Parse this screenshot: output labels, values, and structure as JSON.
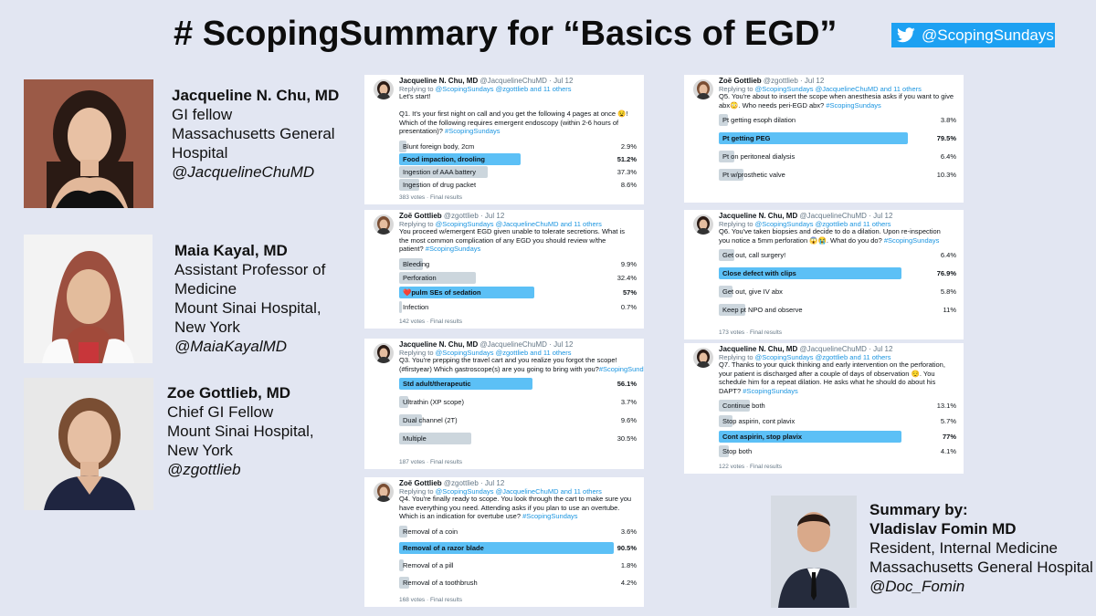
{
  "title": "# ScopingSummary for “Basics of EGD”",
  "twitter_handle": "@ScopingSundays",
  "colors": {
    "twitter_blue": "#1da1f2",
    "poll_winner": "#5cc0f6",
    "poll_bar": "#ccd6dd",
    "background": "#e2e6f2"
  },
  "people": [
    {
      "name": "Jacqueline N. Chu, MD",
      "l1": "GI fellow",
      "l2": "Massachusetts General",
      "l3": "Hospital",
      "handle": "@JacquelineChuMD"
    },
    {
      "name": "Maia Kayal, MD",
      "l1": "Assistant Professor of",
      "l2": "Medicine",
      "l3": "Mount Sinai Hospital,",
      "l4": "New York",
      "handle": "@MaiaKayalMD"
    },
    {
      "name": "Zoe Gottlieb, MD",
      "l1": "Chief GI Fellow",
      "l2": "Mount Sinai Hospital,",
      "l3": "New York",
      "handle": "@zgottlieb"
    }
  ],
  "summary": {
    "label": "Summary by:",
    "name": "Vladislav Fomin MD",
    "l1": "Resident, Internal Medicine",
    "l2": "Massachusetts General Hospital",
    "handle": "@Doc_Fomin"
  },
  "cards": [
    {
      "author": "Jacqueline N. Chu, MD",
      "handle": "@JacquelineChuMD · Jul 12",
      "reply": "Replying to ",
      "reply_to": "@ScopingSundays @zgottlieb and 11 others",
      "text": [
        "Let's start!",
        "",
        "Q1. It's your first night on call and you get the following 4 pages at once 😧!",
        "Which of the following requires emergent endoscopy (within 2-6 hours of",
        "presentation)? "
      ],
      "tag": "#ScopingSundays",
      "options": [
        {
          "label": "Blunt foreign body, 2cm",
          "pct": "2.9%",
          "v": 2.9
        },
        {
          "label": "Food impaction, drooling",
          "pct": "51.2%",
          "v": 51.2,
          "win": true
        },
        {
          "label": "Ingestion of AAA battery",
          "pct": "37.3%",
          "v": 37.3
        },
        {
          "label": "Ingestion of drug packet",
          "pct": "8.6%",
          "v": 8.6
        }
      ],
      "footer": "383 votes · Final results"
    },
    {
      "author": "Zoë Gottlieb",
      "handle": "@zgottlieb · Jul 12",
      "reply": "Replying to ",
      "reply_to": "@ScopingSundays @JacquelineChuMD and 11 others",
      "text": [
        "You proceed w/emergent EGD given unable to tolerate secretions. What is",
        "the most common complication of any EGD you should review w/the",
        "patient? "
      ],
      "tag": "#ScopingSundays",
      "options": [
        {
          "label": "Bleeding",
          "pct": "9.9%",
          "v": 9.9
        },
        {
          "label": "Perforation",
          "pct": "32.4%",
          "v": 32.4
        },
        {
          "label": "❤️pulm SEs of sedation",
          "pct": "57%",
          "v": 57,
          "win": true
        },
        {
          "label": "Infection",
          "pct": "0.7%",
          "v": 0.7
        }
      ],
      "footer": "142 votes · Final results"
    },
    {
      "author": "Jacqueline N. Chu, MD",
      "handle": "@JacquelineChuMD · Jul 12",
      "reply": "Replying to ",
      "reply_to": "@ScopingSundays @zgottlieb and 11 others",
      "text": [
        "Q3. You're prepping the travel cart and you realize you forgot the scope!",
        "(#firstyear) Which gastroscope(s) are you going to bring with you?"
      ],
      "tag": "#ScopingSundays",
      "options": [
        {
          "label": "Std adult/therapeutic",
          "pct": "56.1%",
          "v": 56.1,
          "win": true
        },
        {
          "label": "Ultrathin (XP scope)",
          "pct": "3.7%",
          "v": 3.7
        },
        {
          "label": "Dual channel (2T)",
          "pct": "9.6%",
          "v": 9.6
        },
        {
          "label": "Multiple",
          "pct": "30.5%",
          "v": 30.5
        }
      ],
      "footer": "187 votes · Final results"
    },
    {
      "author": "Zoë Gottlieb",
      "handle": "@zgottlieb · Jul 12",
      "reply": "Replying to ",
      "reply_to": "@ScopingSundays @JacquelineChuMD and 11 others",
      "text": [
        "Q4. You're finally ready to scope. You look through the cart to make sure you",
        "have everything you need. Attending asks if you plan to use an overtube.",
        "Which is an indication for overtube use? "
      ],
      "tag": "#ScopingSundays",
      "options": [
        {
          "label": "Removal of a coin",
          "pct": "3.6%",
          "v": 3.6
        },
        {
          "label": "Removal of a razor blade",
          "pct": "90.5%",
          "v": 90.5,
          "win": true
        },
        {
          "label": "Removal of a pill",
          "pct": "1.8%",
          "v": 1.8
        },
        {
          "label": "Removal of a toothbrush",
          "pct": "4.2%",
          "v": 4.2
        }
      ],
      "footer": "168 votes · Final results"
    },
    {
      "author": "Zoë Gottlieb",
      "handle": "@zgottlieb · Jul 12",
      "reply": "Replying to ",
      "reply_to": "@ScopingSundays @JacquelineChuMD and 11 others",
      "text": [
        "Q5. You're about to insert the scope when anesthesia asks if you want to give",
        "abx😳. Who needs peri-EGD abx? "
      ],
      "tag": "#ScopingSundays",
      "options": [
        {
          "label": "Pt getting esoph dilation",
          "pct": "3.8%",
          "v": 3.8
        },
        {
          "label": "Pt getting PEG",
          "pct": "79.5%",
          "v": 79.5,
          "win": true
        },
        {
          "label": "Pt on peritoneal dialysis",
          "pct": "6.4%",
          "v": 6.4
        },
        {
          "label": "Pt w/prosthetic valve",
          "pct": "10.3%",
          "v": 10.3
        }
      ],
      "footer": ""
    },
    {
      "author": "Jacqueline N. Chu, MD",
      "handle": "@JacquelineChuMD · Jul 12",
      "reply": "Replying to ",
      "reply_to": "@ScopingSundays @zgottlieb and 11 others",
      "text": [
        "Q6. You've taken biopsies and decide to do a dilation. Upon re-inspection",
        "you notice a 5mm perforation 😱😭. What do you do? "
      ],
      "tag": "#ScopingSundays",
      "options": [
        {
          "label": "Get out, call surgery!",
          "pct": "6.4%",
          "v": 6.4
        },
        {
          "label": "Close defect with clips",
          "pct": "76.9%",
          "v": 76.9,
          "win": true
        },
        {
          "label": "Get out, give IV abx",
          "pct": "5.8%",
          "v": 5.8
        },
        {
          "label": "Keep pt NPO and observe",
          "pct": "11%",
          "v": 11
        }
      ],
      "footer": "173 votes · Final results"
    },
    {
      "author": "Jacqueline N. Chu, MD",
      "handle": "@JacquelineChuMD · Jul 12",
      "reply": "Replying to ",
      "reply_to": "@ScopingSundays @zgottlieb and 11 others",
      "text": [
        "Q7. Thanks to your quick thinking and early intervention on the perforation,",
        "your patient is discharged after a couple of days of observation 😌. You",
        "schedule him for a repeat dilation. He asks what he should do about his",
        "DAPT? "
      ],
      "tag": "#ScopingSundays",
      "options": [
        {
          "label": "Continue both",
          "pct": "13.1%",
          "v": 13.1
        },
        {
          "label": "Stop aspirin, cont plavix",
          "pct": "5.7%",
          "v": 5.7
        },
        {
          "label": "Cont aspirin, stop plavix",
          "pct": "77%",
          "v": 77,
          "win": true
        },
        {
          "label": "Stop both",
          "pct": "4.1%",
          "v": 4.1
        }
      ],
      "footer": "122 votes · Final results"
    }
  ]
}
